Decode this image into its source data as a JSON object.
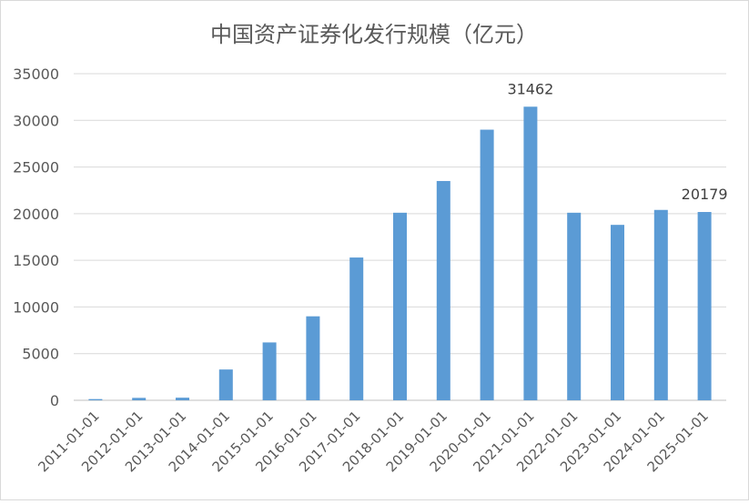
{
  "chart_data": {
    "type": "bar",
    "title": "中国资产证券化发行规模（亿元）",
    "categories": [
      "2011-01-01",
      "2012-01-01",
      "2013-01-01",
      "2014-01-01",
      "2015-01-01",
      "2016-01-01",
      "2017-01-01",
      "2018-01-01",
      "2019-01-01",
      "2020-01-01",
      "2021-01-01",
      "2022-01-01",
      "2023-01-01",
      "2024-01-01",
      "2025-01-01"
    ],
    "values": [
      130,
      260,
      280,
      3300,
      6200,
      9000,
      15300,
      20100,
      23500,
      29000,
      31462,
      20100,
      18800,
      20400,
      20179
    ],
    "data_labels": [
      {
        "category": "2021-01-01",
        "text": "31462"
      },
      {
        "category": "2025-01-01",
        "text": "20179"
      }
    ],
    "ylim": [
      0,
      35000
    ],
    "y_ticks": [
      0,
      5000,
      10000,
      15000,
      20000,
      25000,
      30000,
      35000
    ],
    "grid": true,
    "bar_color": "#5B9BD5",
    "xlabel": "",
    "ylabel": ""
  }
}
